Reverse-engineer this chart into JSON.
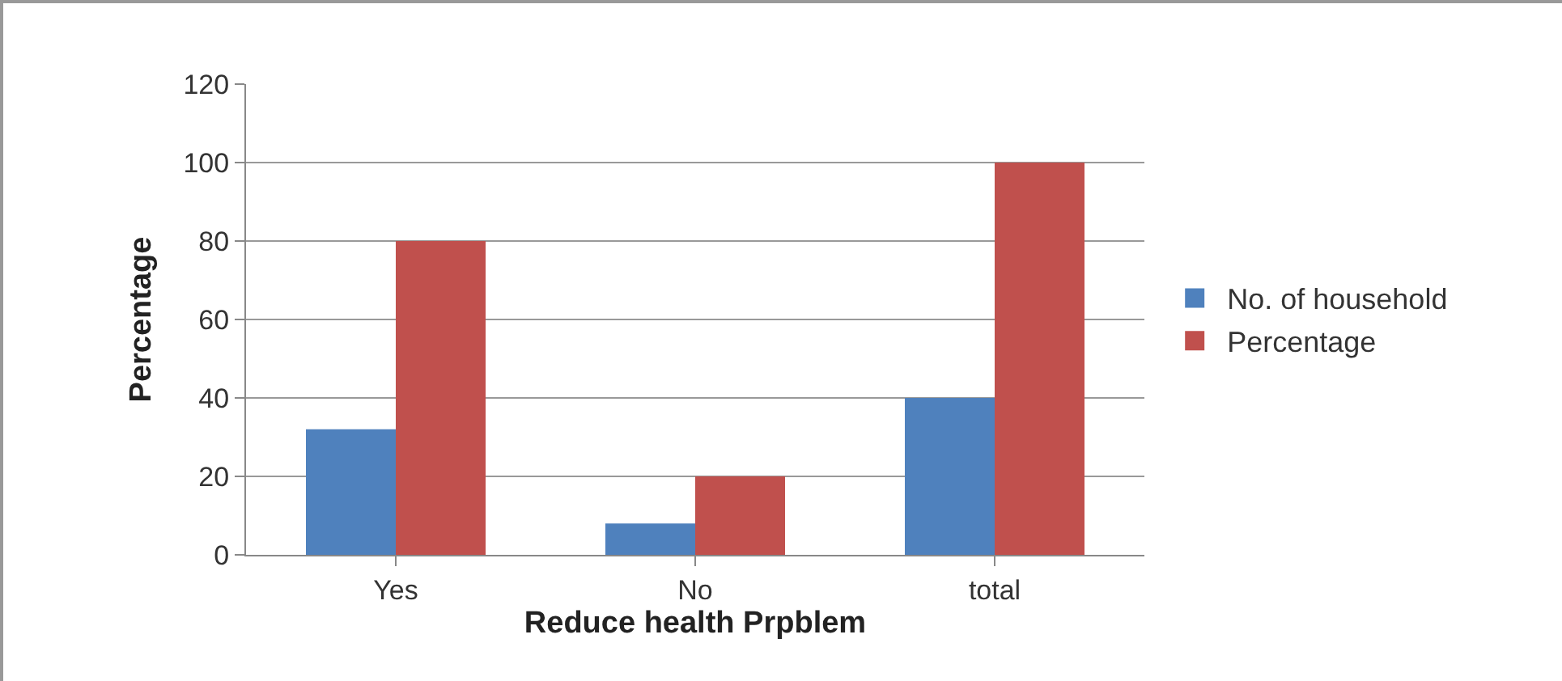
{
  "chart_data": {
    "type": "bar",
    "xlabel": "Reduce health Prpblem",
    "ylabel": "Percentage",
    "categories": [
      "Yes",
      "No",
      "total"
    ],
    "series": [
      {
        "name": "No. of household",
        "color": "#4f81bd",
        "values": [
          32,
          8,
          40
        ]
      },
      {
        "name": "Percentage",
        "color": "#c0504d",
        "values": [
          80,
          20,
          100
        ]
      }
    ],
    "ylim": [
      0,
      120
    ],
    "yticks": [
      0,
      20,
      40,
      60,
      80,
      100,
      120
    ],
    "grid": "y",
    "legend": "right"
  }
}
